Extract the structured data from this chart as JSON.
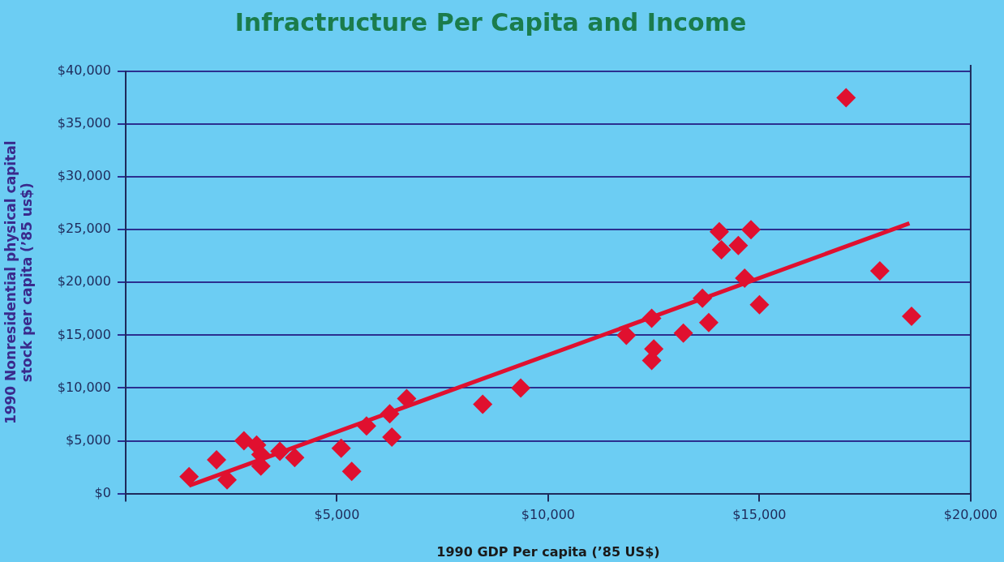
{
  "chart_data": {
    "type": "scatter",
    "title": "Infractructure Per Capita and Income",
    "xlabel": "1990 GDP Per capita (’85 US$)",
    "ylabel": "1990 Nonresidential physical capital\nstock per capita (’85 us$)",
    "series": [
      {
        "color": "#e0102f",
        "marker": "diamond",
        "x": [
          1500,
          2150,
          2400,
          2800,
          3100,
          3200,
          3200,
          3650,
          4000,
          5100,
          5350,
          5700,
          6250,
          6300,
          6650,
          8450,
          9350,
          11850,
          12450,
          12450,
          12500,
          13200,
          13650,
          13800,
          14050,
          14100,
          14500,
          14650,
          14800,
          15000,
          17050,
          17850,
          18600
        ],
        "values": [
          1600,
          3200,
          1300,
          5000,
          4600,
          3700,
          2600,
          4000,
          3400,
          4300,
          2100,
          6400,
          7550,
          5350,
          9000,
          8450,
          10000,
          15000,
          16600,
          12600,
          13700,
          15200,
          18500,
          16200,
          24800,
          23100,
          23500,
          20400,
          25000,
          17900,
          37500,
          21100,
          16800
        ]
      },
      {
        "type": "line",
        "color": "#e0102f",
        "marker": "none",
        "line_style": "solid",
        "x": [
          1500,
          18550
        ],
        "values": [
          750,
          25600
        ]
      }
    ],
    "xlim": [
      0,
      20000
    ],
    "xticks": [
      {
        "value": 0,
        "label": null
      },
      {
        "value": 5000,
        "label": "$5,000"
      },
      {
        "value": 10000,
        "label": "$10,000"
      },
      {
        "value": 15000,
        "label": "$15,000"
      },
      {
        "value": 20000,
        "label": "$20,000"
      }
    ],
    "ylim": [
      0,
      40000
    ],
    "yticks": [
      {
        "value": 0,
        "label": "$0"
      },
      {
        "value": 5000,
        "label": "$5,000"
      },
      {
        "value": 10000,
        "label": "$10,000"
      },
      {
        "value": 15000,
        "label": "$15,000"
      },
      {
        "value": 20000,
        "label": "$20,000"
      },
      {
        "value": 25000,
        "label": "$25,000"
      },
      {
        "value": 30000,
        "label": "$30,000"
      },
      {
        "value": 35000,
        "label": "$35,000"
      },
      {
        "value": 40000,
        "label": "$40,000"
      }
    ],
    "grid": "y",
    "legend": false
  }
}
